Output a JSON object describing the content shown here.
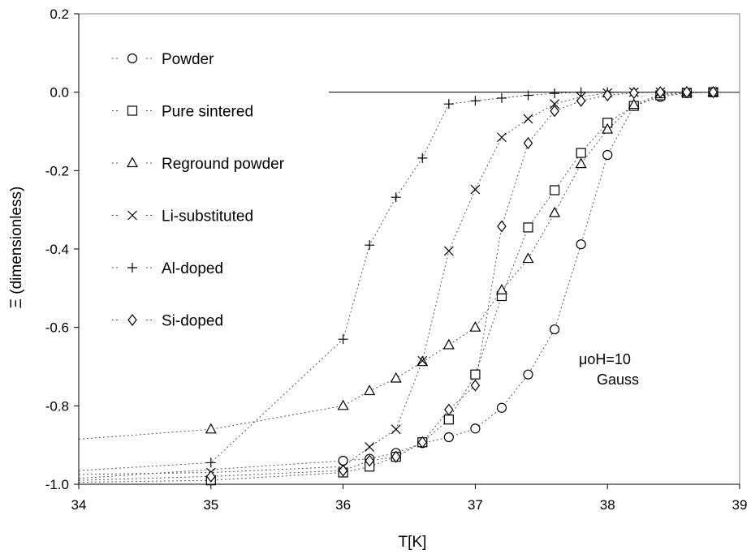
{
  "chart_data": {
    "type": "scatter",
    "xlabel": "T[K]",
    "ylabel": "Ξ (dimensionless)",
    "xlim": [
      34,
      39
    ],
    "ylim": [
      -1.0,
      0.2
    ],
    "x_ticks": [
      "34",
      "35",
      "36",
      "37",
      "38",
      "39"
    ],
    "y_ticks": [
      "0.2",
      "0.0",
      "-0.2",
      "-0.4",
      "-0.6",
      "-0.8",
      "-1.0"
    ],
    "grid": false,
    "legend_position": "left",
    "annotation": [
      "μoH=10",
      "Gauss"
    ],
    "series": [
      {
        "name": "Powder",
        "marker": "circle",
        "points": [
          [
            36.0,
            -0.94
          ],
          [
            36.2,
            -0.935
          ],
          [
            36.4,
            -0.92
          ],
          [
            36.6,
            -0.895
          ],
          [
            36.8,
            -0.88
          ],
          [
            37.0,
            -0.858
          ],
          [
            37.2,
            -0.805
          ],
          [
            37.4,
            -0.72
          ],
          [
            37.6,
            -0.605
          ],
          [
            37.8,
            -0.388
          ],
          [
            38.0,
            -0.16
          ],
          [
            38.2,
            -0.035
          ],
          [
            38.4,
            -0.012
          ],
          [
            38.6,
            -0.002
          ],
          [
            38.8,
            0.0
          ]
        ],
        "lead_in_y": -0.985
      },
      {
        "name": "Pure sintered",
        "marker": "square",
        "points": [
          [
            35.0,
            -0.99
          ],
          [
            36.0,
            -0.97
          ],
          [
            36.2,
            -0.955
          ],
          [
            36.4,
            -0.93
          ],
          [
            36.6,
            -0.893
          ],
          [
            36.8,
            -0.835
          ],
          [
            37.0,
            -0.72
          ],
          [
            37.2,
            -0.52
          ],
          [
            37.4,
            -0.345
          ],
          [
            37.6,
            -0.25
          ],
          [
            37.8,
            -0.155
          ],
          [
            38.0,
            -0.078
          ],
          [
            38.2,
            -0.035
          ],
          [
            38.4,
            -0.008
          ],
          [
            38.6,
            -0.002
          ],
          [
            38.8,
            0.0
          ]
        ],
        "lead_in_y": -0.995
      },
      {
        "name": "Reground powder",
        "marker": "triangle",
        "points": [
          [
            35.0,
            -0.86
          ],
          [
            36.0,
            -0.8
          ],
          [
            36.2,
            -0.762
          ],
          [
            36.4,
            -0.73
          ],
          [
            36.6,
            -0.688
          ],
          [
            36.8,
            -0.645
          ],
          [
            37.0,
            -0.6
          ],
          [
            37.2,
            -0.505
          ],
          [
            37.4,
            -0.425
          ],
          [
            37.6,
            -0.308
          ],
          [
            37.8,
            -0.183
          ],
          [
            38.0,
            -0.095
          ],
          [
            38.2,
            -0.032
          ],
          [
            38.4,
            -0.005
          ],
          [
            38.6,
            0.0
          ],
          [
            38.8,
            0.0
          ]
        ],
        "lead_in_y": -0.885
      },
      {
        "name": "Li-substituted",
        "marker": "x",
        "points": [
          [
            35.0,
            -0.97
          ],
          [
            36.0,
            -0.955
          ],
          [
            36.2,
            -0.905
          ],
          [
            36.4,
            -0.86
          ],
          [
            36.6,
            -0.685
          ],
          [
            36.8,
            -0.405
          ],
          [
            37.0,
            -0.248
          ],
          [
            37.2,
            -0.115
          ],
          [
            37.4,
            -0.068
          ],
          [
            37.6,
            -0.03
          ],
          [
            37.8,
            -0.012
          ],
          [
            38.0,
            -0.002
          ],
          [
            38.2,
            0.0
          ],
          [
            38.4,
            0.0
          ],
          [
            38.6,
            0.0
          ],
          [
            38.8,
            0.0
          ]
        ],
        "lead_in_y": -0.975
      },
      {
        "name": "Al-doped",
        "marker": "plus",
        "points": [
          [
            35.0,
            -0.945
          ],
          [
            36.0,
            -0.63
          ],
          [
            36.2,
            -0.39
          ],
          [
            36.4,
            -0.268
          ],
          [
            36.6,
            -0.168
          ],
          [
            36.8,
            -0.03
          ],
          [
            37.0,
            -0.022
          ],
          [
            37.2,
            -0.015
          ],
          [
            37.4,
            -0.008
          ],
          [
            37.6,
            -0.003
          ],
          [
            37.8,
            0.0
          ],
          [
            38.0,
            0.0
          ],
          [
            38.2,
            0.0
          ],
          [
            38.4,
            0.0
          ],
          [
            38.6,
            0.0
          ],
          [
            38.8,
            0.0
          ]
        ],
        "lead_in_y": -0.965
      },
      {
        "name": "Si-doped",
        "marker": "diamond",
        "points": [
          [
            35.0,
            -0.98
          ],
          [
            36.0,
            -0.965
          ],
          [
            36.2,
            -0.94
          ],
          [
            36.4,
            -0.93
          ],
          [
            36.6,
            -0.893
          ],
          [
            36.8,
            -0.81
          ],
          [
            37.0,
            -0.748
          ],
          [
            37.2,
            -0.342
          ],
          [
            37.4,
            -0.13
          ],
          [
            37.6,
            -0.048
          ],
          [
            37.8,
            -0.022
          ],
          [
            38.0,
            -0.008
          ],
          [
            38.2,
            -0.002
          ],
          [
            38.4,
            0.0
          ],
          [
            38.6,
            0.0
          ],
          [
            38.8,
            0.0
          ]
        ],
        "lead_in_y": -0.99
      }
    ]
  }
}
